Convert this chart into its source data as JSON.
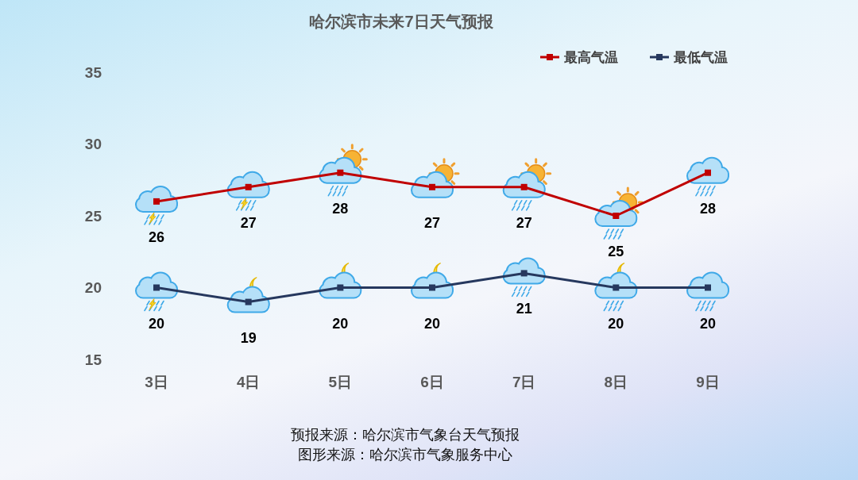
{
  "chart_data": {
    "type": "line",
    "title": "哈尔滨市未来7日天气预报",
    "categories": [
      "3日",
      "4日",
      "5日",
      "6日",
      "7日",
      "8日",
      "9日"
    ],
    "series": [
      {
        "name": "最高气温",
        "color": "#c00000",
        "values": [
          26,
          27,
          28,
          27,
          27,
          25,
          28
        ]
      },
      {
        "name": "最低气温",
        "color": "#26385e",
        "values": [
          20,
          19,
          20,
          20,
          21,
          20,
          20
        ]
      }
    ],
    "ylim": [
      15,
      35
    ],
    "yticks": [
      15,
      20,
      25,
      30,
      35
    ],
    "legend": "top right",
    "marker": "square",
    "line_style": "solid",
    "data_labels": true,
    "annotations": [
      "预报来源：哈尔滨市气象台天气预报",
      "图形来源：哈尔滨市气象服务中心"
    ]
  }
}
